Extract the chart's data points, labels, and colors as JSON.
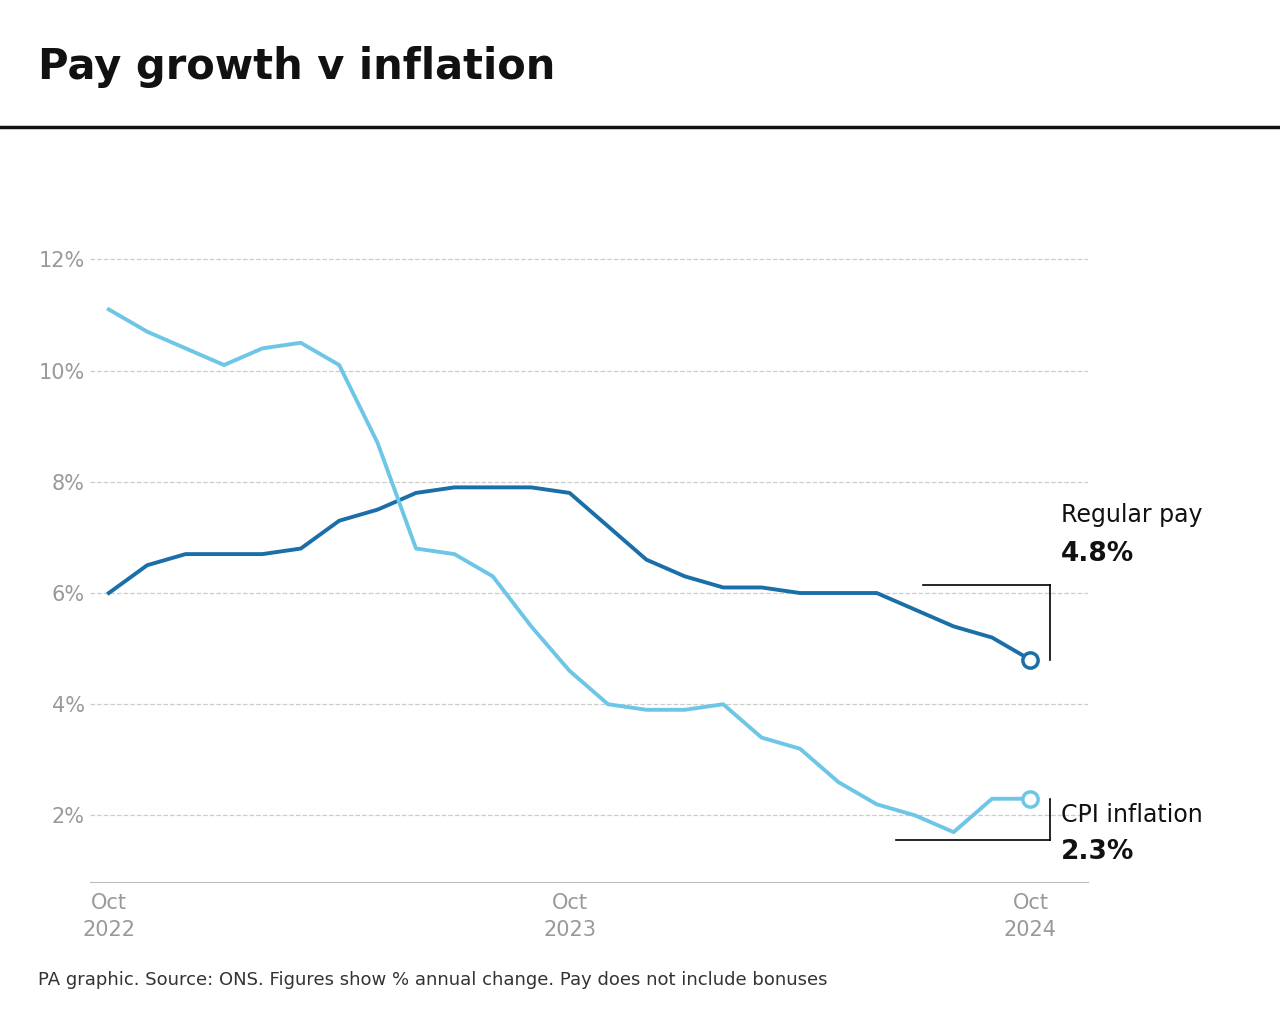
{
  "title": "Pay growth v inflation",
  "title_fontsize": 30,
  "title_fontweight": "bold",
  "footnote": "PA graphic. Source: ONS. Figures show % annual change. Pay does not include bonuses",
  "footnote_fontsize": 13,
  "background_color": "#ffffff",
  "yticks": [
    2,
    4,
    6,
    8,
    10,
    12
  ],
  "ylim": [
    0.8,
    13.2
  ],
  "regular_pay_color": "#1a6fa8",
  "cpi_color": "#6ec6e6",
  "regular_pay_label": "Regular pay",
  "regular_pay_value": "4.8%",
  "cpi_label": "CPI inflation",
  "cpi_value": "2.3%",
  "annotation_fontsize": 17,
  "annotation_value_fontsize": 19,
  "x_tick_positions": [
    0,
    12,
    24
  ],
  "x_tick_labels": [
    "Oct\n2022",
    "Oct\n2023",
    "Oct\n2024"
  ],
  "regular_pay_x": [
    0,
    1,
    2,
    3,
    4,
    5,
    6,
    7,
    8,
    9,
    10,
    11,
    12,
    13,
    14,
    15,
    16,
    17,
    18,
    19,
    20,
    21,
    22,
    23,
    24
  ],
  "regular_pay_y": [
    6.0,
    6.5,
    6.7,
    6.7,
    6.7,
    6.8,
    7.3,
    7.5,
    7.8,
    7.9,
    7.9,
    7.9,
    7.8,
    7.2,
    6.6,
    6.3,
    6.1,
    6.1,
    6.0,
    6.0,
    6.0,
    5.7,
    5.4,
    5.2,
    4.8
  ],
  "cpi_x": [
    0,
    1,
    2,
    3,
    4,
    5,
    6,
    7,
    8,
    9,
    10,
    11,
    12,
    13,
    14,
    15,
    16,
    17,
    18,
    19,
    20,
    21,
    22,
    23,
    24
  ],
  "cpi_y": [
    11.1,
    10.7,
    10.4,
    10.1,
    10.4,
    10.5,
    10.1,
    8.7,
    6.8,
    6.7,
    6.3,
    5.4,
    4.6,
    4.0,
    3.9,
    3.9,
    4.0,
    3.4,
    3.2,
    2.6,
    2.2,
    2.0,
    1.7,
    2.3,
    2.3
  ],
  "line_width": 2.8
}
